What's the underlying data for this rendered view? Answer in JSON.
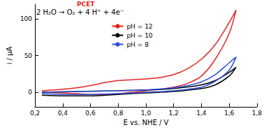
{
  "chart_data": {
    "type": "line",
    "x_label": "E vs. NHE / V",
    "y_label": "i / µA",
    "xlim": [
      0.2,
      1.8
    ],
    "xticks": [
      {
        "value": 0.2,
        "label": "0,2"
      },
      {
        "value": 0.4,
        "label": "0,4"
      },
      {
        "value": 0.6,
        "label": "0,6"
      },
      {
        "value": 0.8,
        "label": "0,8"
      },
      {
        "value": 1.0,
        "label": "1,0"
      },
      {
        "value": 1.2,
        "label": "1,2"
      },
      {
        "value": 1.4,
        "label": "1,4"
      },
      {
        "value": 1.6,
        "label": "1,6"
      },
      {
        "value": 1.8,
        "label": "1,8"
      }
    ],
    "ylim": [
      -20,
      120
    ],
    "yticks": [
      0,
      50,
      100
    ],
    "grid": false,
    "legend": "upper center",
    "annotations": [
      {
        "text": "PCET",
        "color": "#e8231f"
      },
      {
        "text": "2 H₂O → O₂ + 4 H⁺ + 4e⁻",
        "color": "#000000"
      }
    ],
    "series": [
      {
        "name": "pH = 12",
        "color": "#e8231f",
        "x": [
          0.25,
          0.4,
          0.5,
          0.6,
          0.7,
          0.8,
          0.9,
          1.0,
          1.1,
          1.2,
          1.3,
          1.4,
          1.5,
          1.6,
          1.65,
          1.6,
          1.5,
          1.4,
          1.3,
          1.2,
          1.1,
          1.0,
          0.9,
          0.8,
          0.7,
          0.6,
          0.5,
          0.4,
          0.25
        ],
        "values": [
          2,
          4,
          6,
          9,
          13,
          16,
          17,
          18,
          20,
          24,
          32,
          45,
          65,
          95,
          112,
          80,
          45,
          22,
          12,
          7,
          4,
          2,
          0,
          -2,
          -3,
          -3,
          -2,
          -1,
          0
        ]
      },
      {
        "name": "pH = 10",
        "color": "#000000",
        "x": [
          0.25,
          0.5,
          0.8,
          1.0,
          1.2,
          1.4,
          1.5,
          1.6,
          1.65,
          1.6,
          1.5,
          1.4,
          1.2,
          1.0,
          0.8,
          0.6,
          0.4,
          0.25
        ],
        "values": [
          0,
          1,
          2,
          3,
          5,
          10,
          16,
          27,
          34,
          22,
          10,
          5,
          1,
          -1,
          -3,
          -5,
          -5,
          -4
        ]
      },
      {
        "name": "pH = 8",
        "color": "#2b4fd8",
        "x": [
          0.25,
          0.5,
          0.8,
          1.0,
          1.2,
          1.3,
          1.4,
          1.5,
          1.6,
          1.65,
          1.6,
          1.5,
          1.4,
          1.2,
          1.0,
          0.8,
          0.6,
          0.4,
          0.25
        ],
        "values": [
          0,
          1,
          2,
          3,
          6,
          9,
          14,
          24,
          40,
          48,
          30,
          15,
          7,
          2,
          0,
          -2,
          -3,
          -3,
          -2
        ]
      }
    ]
  }
}
